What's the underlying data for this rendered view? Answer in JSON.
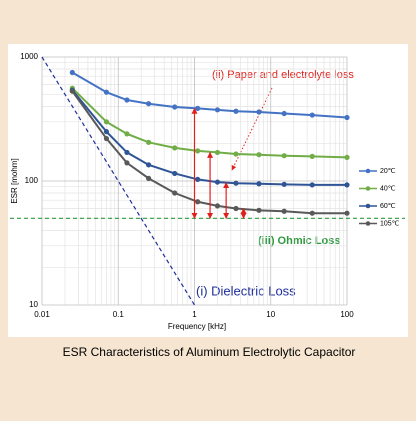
{
  "chart_data": {
    "type": "line",
    "caption": "ESR Characteristics of Aluminum Electrolytic Capacitor",
    "x_label": "Frequency [kHz]",
    "y_label": "ESR [mohm]",
    "log_x": true,
    "log_y": true,
    "grid": true,
    "xlim": [
      0.01,
      100
    ],
    "ylim": [
      10,
      1000
    ],
    "xticks": [
      0.01,
      0.1,
      1,
      10,
      100
    ],
    "yticks": [
      10,
      100,
      1000
    ],
    "x": [
      0.025,
      0.07,
      0.13,
      0.25,
      0.55,
      1.1,
      2,
      3.5,
      7,
      15,
      35,
      100
    ],
    "series": [
      {
        "name": "20℃",
        "color": "#4472c4",
        "values": [
          750,
          520,
          450,
          420,
          395,
          385,
          375,
          365,
          360,
          350,
          340,
          325
        ]
      },
      {
        "name": "40℃",
        "color": "#70ad47",
        "values": [
          560,
          300,
          240,
          205,
          185,
          175,
          170,
          165,
          163,
          160,
          158,
          155
        ]
      },
      {
        "name": "60℃",
        "color": "#2f5597",
        "values": [
          540,
          250,
          170,
          135,
          115,
          103,
          98,
          96,
          95,
          94,
          93,
          93
        ]
      },
      {
        "name": "105℃",
        "color": "#595959",
        "values": [
          530,
          220,
          140,
          105,
          80,
          68,
          63,
          60,
          58,
          57,
          55,
          55
        ]
      }
    ],
    "legend": "right",
    "dielectric_line": {
      "x": [
        0.01,
        1
      ],
      "y": [
        1000,
        10
      ],
      "color": "#1f2f9a"
    },
    "ohmic_line": {
      "y": 50,
      "color": "#2e9a3e"
    },
    "arrows": [
      {
        "x": 1,
        "y": [
          50,
          385
        ]
      },
      {
        "x": 1.6,
        "y": [
          50,
          170
        ]
      },
      {
        "x": 2.6,
        "y": [
          50,
          97
        ]
      },
      {
        "x": 4.4,
        "y": [
          50,
          60
        ]
      }
    ],
    "arrow_color": "#e0201b",
    "annotations": [
      {
        "text": "(ii) Paper and electrolyte loss",
        "color": "#e0201b"
      },
      {
        "text": "(iii) Ohmic Loss",
        "color": "#2e9a3e"
      },
      {
        "text": "(i) Dielectric Loss",
        "color": "#1f2f9a"
      }
    ]
  }
}
